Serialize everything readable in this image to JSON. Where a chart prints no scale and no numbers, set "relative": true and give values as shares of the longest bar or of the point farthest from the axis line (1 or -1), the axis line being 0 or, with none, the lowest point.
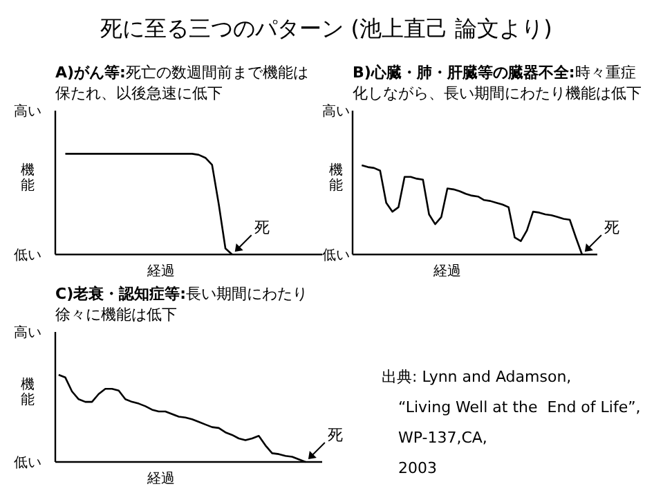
{
  "chart_data": [
    {
      "type": "line",
      "relative": true,
      "title": "死に至る三つのパターン (池上直己 論文より)",
      "subtitle": "A)がん等:死亡の数週間前まで機能は保たれ、以後急速に低下",
      "xlabel": "経過",
      "ylabel": "機能",
      "grid": false,
      "marker": "none",
      "line_style": "solid",
      "categories": [
        null,
        null,
        null,
        null,
        null,
        null,
        null,
        null,
        null,
        null,
        null,
        null,
        null,
        null,
        null,
        null,
        null,
        null,
        null,
        null,
        null,
        null,
        null,
        null,
        null,
        null,
        null,
        null,
        null,
        null,
        null,
        null,
        null,
        null,
        null,
        null,
        null,
        null,
        null,
        null
      ],
      "series": [
        {
          "color": "#000000",
          "values": [
            null,
            1,
            1,
            1,
            1,
            1,
            1,
            1,
            1,
            1,
            1,
            1,
            1,
            1,
            1,
            1,
            1,
            1,
            1,
            1,
            1,
            0.99,
            0.96,
            0.89,
            0.5,
            0.06,
            0,
            null,
            null,
            null,
            null,
            null,
            null,
            null,
            null,
            null,
            null,
            null,
            null,
            null
          ]
        }
      ],
      "annotations": [
        "高い",
        "低い",
        "死"
      ]
    },
    {
      "type": "line",
      "relative": true,
      "subtitle": "B)心臓・肺・肝臓等の臓器不全:時々重症化しながら、長い期間にわたり機能は低下",
      "xlabel": "経過",
      "ylabel": "機能",
      "grid": false,
      "marker": "none",
      "line_style": "solid",
      "categories": [
        null,
        null,
        null,
        null,
        null,
        null,
        null,
        null,
        null,
        null,
        null,
        null,
        null,
        null,
        null,
        null,
        null,
        null,
        null,
        null,
        null,
        null,
        null,
        null,
        null,
        null,
        null,
        null,
        null,
        null,
        null,
        null,
        null,
        null,
        null,
        null,
        null,
        null,
        null,
        null
      ],
      "series": [
        {
          "color": "#000000",
          "values": [
            null,
            1,
            0.98,
            0.97,
            0.94,
            0.58,
            0.48,
            0.53,
            0.87,
            0.87,
            0.85,
            0.84,
            0.45,
            0.34,
            0.42,
            0.74,
            0.73,
            0.71,
            0.68,
            0.66,
            0.65,
            0.61,
            0.6,
            0.58,
            0.56,
            0.53,
            0.19,
            0.15,
            0.27,
            0.48,
            0.47,
            0.45,
            0.44,
            0.42,
            0.4,
            0.39,
            0.19,
            0,
            null,
            null
          ]
        }
      ],
      "annotations": [
        "高い",
        "低い",
        "死"
      ]
    },
    {
      "type": "line",
      "relative": true,
      "subtitle": "C)老衰・認知症等:長い期間にわたり徐々に機能は低下",
      "xlabel": "経過",
      "ylabel": "機能",
      "grid": false,
      "marker": "none",
      "line_style": "solid",
      "categories": [
        null,
        null,
        null,
        null,
        null,
        null,
        null,
        null,
        null,
        null,
        null,
        null,
        null,
        null,
        null,
        null,
        null,
        null,
        null,
        null,
        null,
        null,
        null,
        null,
        null,
        null,
        null,
        null,
        null,
        null,
        null,
        null,
        null,
        null,
        null,
        null,
        null,
        null,
        null,
        null
      ],
      "series": [
        {
          "color": "#000000",
          "values": [
            1,
            0.97,
            0.81,
            0.72,
            0.69,
            0.69,
            0.78,
            0.84,
            0.84,
            0.82,
            0.72,
            0.69,
            0.67,
            0.64,
            0.6,
            0.58,
            0.58,
            0.55,
            0.52,
            0.51,
            0.49,
            0.46,
            0.43,
            0.4,
            0.39,
            0.34,
            0.31,
            0.27,
            0.25,
            0.27,
            0.3,
            0.19,
            0.1,
            0.09,
            0.07,
            0.06,
            0.03,
            0,
            null,
            null
          ]
        }
      ],
      "annotations": [
        "高い",
        "低い",
        "死",
        "出典: Lynn and Adamson,",
        "“Living Well at the  End of Life”,",
        "WP-137,CA,",
        "2003"
      ]
    }
  ]
}
